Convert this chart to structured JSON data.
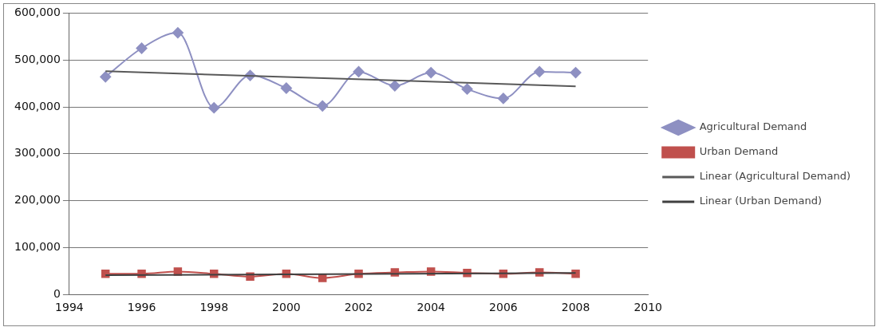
{
  "chart_data": {
    "type": "line",
    "xlim": [
      1994,
      2010
    ],
    "xticks": [
      1994,
      1996,
      1998,
      2000,
      2002,
      2004,
      2006,
      2008,
      2010
    ],
    "ylim": [
      0,
      600000
    ],
    "yticks": [
      0,
      {
        "value": 100000,
        "label": "100,000"
      },
      {
        "value": 200000,
        "label": "200,000"
      },
      {
        "value": 300000,
        "label": "300,000"
      },
      {
        "value": 400000,
        "label": "400,000"
      },
      {
        "value": 500000,
        "label": "500,000"
      },
      {
        "value": 600000,
        "label": "600,000"
      }
    ],
    "grid": "y",
    "legend": "right",
    "series": [
      {
        "name": "Agricultural Demand",
        "color": "#8e90c2",
        "marker": "diamond",
        "x": [
          1995,
          1996,
          1997,
          1998,
          1999,
          2000,
          2001,
          2002,
          2003,
          2004,
          2005,
          2006,
          2007,
          2008
        ],
        "values": [
          464000,
          525000,
          558000,
          398000,
          467000,
          440000,
          402000,
          475000,
          445000,
          473000,
          438000,
          418000,
          475000,
          473000
        ]
      },
      {
        "name": "Urban Demand",
        "color": "#c0504d",
        "marker": "square",
        "x": [
          1995,
          1996,
          1997,
          1998,
          1999,
          2000,
          2001,
          2002,
          2003,
          2004,
          2005,
          2006,
          2007,
          2008
        ],
        "values": [
          44000,
          44000,
          49000,
          44000,
          38000,
          44000,
          35000,
          44000,
          47000,
          49000,
          46000,
          44000,
          47000,
          44000
        ]
      },
      {
        "name": "Linear (Agricultural Demand)",
        "color": "#595959",
        "marker": "none",
        "x": [
          1995,
          2008
        ],
        "values": [
          476000,
          444000
        ]
      },
      {
        "name": "Linear (Urban Demand)",
        "color": "#404040",
        "marker": "none",
        "x": [
          1995,
          2008
        ],
        "values": [
          41000,
          46000
        ]
      }
    ]
  }
}
